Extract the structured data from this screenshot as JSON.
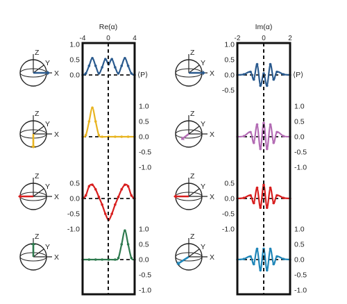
{
  "figure": {
    "left_title": "Re(α)",
    "right_title": "Im(α)",
    "left_top_ticks": [
      "-4",
      "0",
      "4"
    ],
    "right_top_ticks": [
      "-2",
      "0",
      "2"
    ],
    "side_label": "⟨P⟩",
    "axis_letters": {
      "z": "Z",
      "y": "Y",
      "x": "X"
    }
  },
  "colors": {
    "row1": "#2a5a8e",
    "row2_left": "#e8b420",
    "row2_right": "#b36cb4",
    "row3": "#d81e1e",
    "row4_left": "#2d7a4e",
    "row4_right": "#1f86b8",
    "frame": "#111111"
  },
  "chart_data": [
    {
      "type": "line",
      "panel": "left",
      "row": 1,
      "x": [
        -4,
        -3.5,
        -3,
        -2.5,
        -2,
        -1.5,
        -1,
        -0.5,
        0,
        0.5,
        1,
        1.5,
        2,
        2.5,
        3,
        3.5,
        4
      ],
      "y": [
        0,
        0.05,
        0.3,
        0.55,
        0.3,
        0.05,
        0.25,
        0.52,
        0.35,
        0.52,
        0.25,
        0.05,
        0.3,
        0.55,
        0.3,
        0.05,
        0
      ],
      "ylim": [
        0,
        1
      ],
      "yticks": [
        "1.0",
        "0.5",
        "0.0"
      ],
      "ytick_side": "left"
    },
    {
      "type": "line",
      "panel": "left",
      "row": 2,
      "x": [
        -4,
        -3.5,
        -3,
        -2.5,
        -2,
        -1.5,
        -1,
        0,
        1,
        2,
        3,
        4
      ],
      "y": [
        0,
        0.05,
        0.5,
        0.95,
        0.5,
        0.05,
        0,
        0,
        0,
        0,
        0,
        0
      ],
      "ylim": [
        -1,
        1
      ],
      "yticks": [
        "1.0",
        "0.5",
        "0.0",
        "-0.5",
        "-1.0"
      ],
      "ytick_side": "right"
    },
    {
      "type": "line",
      "panel": "left",
      "row": 3,
      "x": [
        -4,
        -3.5,
        -3,
        -2.5,
        -2,
        -1.5,
        -1,
        -0.5,
        0,
        0.5,
        1,
        1.5,
        2,
        2.5,
        3,
        3.5,
        4
      ],
      "y": [
        0,
        0.1,
        0.4,
        0.45,
        0.3,
        0.05,
        -0.2,
        -0.5,
        -0.7,
        -0.5,
        -0.2,
        0.05,
        0.3,
        0.45,
        0.4,
        0.1,
        0
      ],
      "ylim": [
        -1,
        1
      ],
      "yticks": [
        "0.5",
        "0.0",
        "-0.5",
        "-1.0"
      ],
      "ytick_side": "left"
    },
    {
      "type": "line",
      "panel": "left",
      "row": 4,
      "x": [
        -4,
        -3,
        -2,
        -1,
        0,
        1,
        1.5,
        2,
        2.5,
        3,
        3.5,
        4
      ],
      "y": [
        0,
        0,
        0,
        0,
        0,
        0,
        0.05,
        0.5,
        0.95,
        0.5,
        0.05,
        0
      ],
      "ylim": [
        -1,
        1
      ],
      "yticks": [
        "1.0",
        "0.5",
        "0.0",
        "-0.5",
        "-1.0"
      ],
      "ytick_side": "right"
    },
    {
      "type": "line",
      "panel": "right",
      "row": 1,
      "x": [
        -2,
        -1.5,
        -1,
        -0.75,
        -0.5,
        -0.25,
        0,
        0.25,
        0.5,
        0.75,
        1,
        1.5,
        2
      ],
      "y": [
        0,
        0.02,
        0.1,
        -0.15,
        0.35,
        -0.35,
        0.05,
        -0.35,
        0.35,
        -0.15,
        0.1,
        0.02,
        0
      ],
      "ylim": [
        -1,
        1
      ],
      "yticks": [
        "1.0",
        "0.5",
        "0.0",
        "-0.5"
      ],
      "ytick_side": "left"
    },
    {
      "type": "line",
      "panel": "right",
      "row": 2,
      "x": [
        -2,
        -1.5,
        -1,
        -0.75,
        -0.5,
        -0.25,
        0,
        0.25,
        0.5,
        0.75,
        1,
        1.5,
        2
      ],
      "y": [
        0,
        0.02,
        0.15,
        -0.2,
        0.4,
        -0.4,
        0.45,
        -0.4,
        0.4,
        -0.2,
        0.15,
        0.02,
        0
      ],
      "ylim": [
        -1,
        1
      ],
      "yticks": [
        "1.0",
        "0.5",
        "0.0",
        "-0.5",
        "-1.0"
      ],
      "ytick_side": "right"
    },
    {
      "type": "line",
      "panel": "right",
      "row": 3,
      "x": [
        -2,
        -1.5,
        -1,
        -0.75,
        -0.5,
        -0.25,
        0,
        0.25,
        0.5,
        0.75,
        1,
        1.5,
        2
      ],
      "y": [
        0,
        0.02,
        0.1,
        -0.15,
        0.35,
        -0.3,
        0.45,
        -0.3,
        0.35,
        -0.15,
        0.1,
        0.02,
        0
      ],
      "ylim": [
        -1,
        1
      ],
      "yticks": [
        "0.5",
        "0.0",
        "-0.5",
        "-1.0"
      ],
      "ytick_side": "left"
    },
    {
      "type": "line",
      "panel": "right",
      "row": 4,
      "x": [
        -2,
        -1.5,
        -1,
        -0.75,
        -0.5,
        -0.25,
        0,
        0.25,
        0.5,
        0.75,
        1,
        1.5,
        2
      ],
      "y": [
        0,
        0.02,
        0.1,
        -0.15,
        0.35,
        -0.35,
        0.35,
        -0.35,
        0.35,
        -0.15,
        0.1,
        0.02,
        0
      ],
      "ylim": [
        -1,
        1
      ],
      "yticks": [
        "1.0",
        "0.5",
        "0.0",
        "-0.5",
        "-1.0"
      ],
      "ytick_side": "right"
    }
  ]
}
